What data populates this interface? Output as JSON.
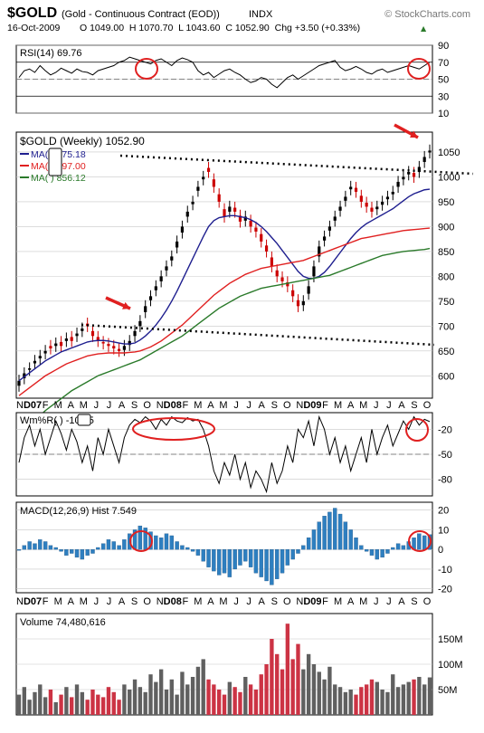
{
  "header": {
    "symbol": "$GOLD",
    "name": "(Gold - Continuous Contract (EOD))",
    "exchange": "INDX",
    "brand": "© StockCharts.com",
    "date": "16-Oct-2009",
    "ohlc": "O 1049.00  H 1070.70  L 1043.60  C 1052.90  Chg +3.50 (+0.33%)",
    "chg_arrow": "▲"
  },
  "colors": {
    "up": "#000000",
    "down": "#cc0000",
    "ma_short": "#1f1f8f",
    "ma_mid": "#e02020",
    "ma_long": "#2a7a2a",
    "hist": "#2e7fc0",
    "volume_up": "#606060",
    "volume_down": "#cc3344",
    "overbought_fill": "#7a9a7a",
    "annotation": "#e02020",
    "grid": "#c8c8c8"
  },
  "chart_data": [
    {
      "type": "line",
      "panel": "rsi",
      "label": "RSI(14) 69.76",
      "ylim": [
        10,
        90
      ],
      "tick_labels": [
        "90",
        "70",
        "50",
        "30",
        "10"
      ],
      "ticks": [
        90,
        70,
        50,
        30,
        10
      ],
      "reference_lines": [
        70,
        50,
        30
      ],
      "series": [
        {
          "values": [
            52,
            60,
            62,
            58,
            66,
            60,
            55,
            58,
            63,
            60,
            57,
            62,
            59,
            58,
            55,
            60,
            62,
            64,
            66,
            70,
            72,
            76,
            74,
            72,
            70,
            68,
            72,
            74,
            70,
            66,
            72,
            75,
            73,
            70,
            60,
            55,
            58,
            52,
            56,
            60,
            62,
            58,
            55,
            50,
            46,
            48,
            52,
            50,
            44,
            40,
            46,
            52,
            55,
            50,
            54,
            58,
            62,
            66,
            68,
            70,
            72,
            64,
            60,
            62,
            65,
            62,
            58,
            56,
            60,
            62,
            58,
            60,
            62,
            64,
            66,
            64,
            62,
            66,
            70
          ]
        }
      ]
    },
    {
      "type": "candlestick",
      "panel": "price",
      "label": "$GOLD (Weekly) 1052.90",
      "ylim": [
        555,
        1090
      ],
      "tick_labels": [
        "1050",
        "1000",
        "950",
        "900",
        "850",
        "800",
        "750",
        "700",
        "650",
        "600"
      ],
      "ticks": [
        1050,
        1000,
        950,
        900,
        850,
        800,
        750,
        700,
        650,
        600
      ],
      "x_labels": [
        "N",
        "D07",
        "F",
        "M",
        "A",
        "M",
        "J",
        "J",
        "A",
        "S",
        "O",
        "N",
        "D08",
        "F",
        "M",
        "A",
        "M",
        "J",
        "J",
        "A",
        "S",
        "O",
        "N",
        "D09",
        "F",
        "M",
        "A",
        "M",
        "J",
        "J",
        "A",
        "S",
        "O"
      ],
      "close": [
        590,
        605,
        615,
        630,
        640,
        650,
        655,
        665,
        660,
        675,
        670,
        685,
        695,
        700,
        680,
        670,
        665,
        660,
        655,
        650,
        660,
        670,
        690,
        710,
        740,
        760,
        780,
        800,
        820,
        840,
        870,
        900,
        930,
        950,
        980,
        1000,
        1010,
        980,
        950,
        920,
        940,
        930,
        910,
        920,
        900,
        890,
        870,
        850,
        820,
        800,
        790,
        780,
        760,
        740,
        750,
        780,
        820,
        860,
        880,
        900,
        920,
        940,
        960,
        980,
        970,
        950,
        940,
        930,
        940,
        950,
        960,
        970,
        990,
        1000,
        1010,
        1000,
        1020,
        1040,
        1052.9
      ],
      "open": [
        580,
        595,
        612,
        625,
        635,
        645,
        660,
        660,
        668,
        670,
        678,
        680,
        690,
        705,
        690,
        678,
        668,
        664,
        660,
        654,
        652,
        662,
        680,
        700,
        728,
        752,
        772,
        790,
        812,
        832,
        858,
        888,
        920,
        945,
        972,
        995,
        1018,
        995,
        965,
        935,
        930,
        938,
        922,
        912,
        912,
        898,
        885,
        862,
        838,
        812,
        798,
        788,
        772,
        752,
        742,
        765,
        800,
        840,
        872,
        892,
        912,
        932,
        952,
        975,
        978,
        962,
        948,
        938,
        935,
        944,
        955,
        965,
        980,
        995,
        1005,
        1008,
        1010,
        1030,
        1049
      ],
      "overlays": [
        {
          "name": "MA(  ) 975.18",
          "values": [
            590,
            598,
            606,
            614,
            622,
            630,
            636,
            642,
            648,
            652,
            656,
            660,
            664,
            668,
            670,
            671,
            671,
            670,
            668,
            666,
            664,
            664,
            666,
            672,
            680,
            690,
            702,
            716,
            732,
            750,
            770,
            792,
            814,
            836,
            858,
            880,
            900,
            912,
            918,
            920,
            922,
            922,
            920,
            918,
            914,
            908,
            900,
            890,
            878,
            866,
            852,
            838,
            824,
            810,
            800,
            796,
            796,
            800,
            808,
            820,
            834,
            848,
            862,
            876,
            888,
            898,
            906,
            912,
            918,
            924,
            930,
            936,
            944,
            952,
            960,
            966,
            970,
            974,
            975.18
          ]
        },
        {
          "name": "MA(  ) 897.00",
          "values": [
            560,
            568,
            576,
            584,
            592,
            600,
            606,
            612,
            618,
            624,
            628,
            632,
            636,
            640,
            642,
            644,
            645,
            646,
            646,
            646,
            646,
            647,
            648,
            650,
            654,
            658,
            664,
            670,
            678,
            686,
            694,
            702,
            712,
            722,
            732,
            742,
            752,
            762,
            770,
            778,
            786,
            792,
            798,
            804,
            808,
            812,
            816,
            818,
            820,
            822,
            824,
            826,
            828,
            830,
            832,
            836,
            840,
            844,
            848,
            852,
            856,
            860,
            864,
            868,
            872,
            876,
            878,
            880,
            882,
            884,
            886,
            888,
            890,
            892,
            893,
            894,
            895,
            896,
            897
          ]
        },
        {
          "name": "MA(  ) 856.12",
          "values": [
            480,
            490,
            500,
            510,
            520,
            530,
            538,
            546,
            554,
            562,
            570,
            576,
            582,
            588,
            594,
            600,
            604,
            608,
            612,
            616,
            620,
            624,
            628,
            632,
            638,
            644,
            650,
            656,
            662,
            668,
            674,
            680,
            688,
            696,
            704,
            712,
            720,
            728,
            736,
            742,
            748,
            754,
            760,
            764,
            768,
            772,
            776,
            778,
            780,
            782,
            784,
            786,
            788,
            790,
            792,
            794,
            796,
            798,
            800,
            802,
            806,
            810,
            814,
            818,
            822,
            826,
            830,
            834,
            838,
            842,
            844,
            846,
            848,
            850,
            851,
            852,
            853,
            854,
            856.12
          ]
        }
      ]
    },
    {
      "type": "line",
      "panel": "williams",
      "label": "Wm%R(  ) -10.75",
      "ylim": [
        -100,
        0
      ],
      "tick_labels": [
        "-20",
        "-50",
        "-80"
      ],
      "ticks": [
        -20,
        -50,
        -80
      ],
      "reference_lines": [
        -20,
        -50,
        -80
      ],
      "series": [
        {
          "values": [
            -60,
            -30,
            -15,
            -40,
            -20,
            -50,
            -30,
            -10,
            -25,
            -45,
            -20,
            -35,
            -60,
            -40,
            -70,
            -30,
            -50,
            -20,
            -40,
            -60,
            -30,
            -15,
            -8,
            -12,
            -5,
            -10,
            -20,
            -8,
            -15,
            -5,
            -10,
            -12,
            -6,
            -10,
            -8,
            -20,
            -40,
            -70,
            -85,
            -60,
            -75,
            -50,
            -80,
            -60,
            -90,
            -70,
            -80,
            -95,
            -60,
            -85,
            -70,
            -40,
            -60,
            -20,
            -30,
            -10,
            -40,
            -5,
            -20,
            -50,
            -30,
            -60,
            -40,
            -70,
            -50,
            -30,
            -60,
            -20,
            -50,
            -30,
            -15,
            -40,
            -25,
            -10,
            -20,
            -5,
            -15,
            -8,
            -10.75
          ]
        }
      ]
    },
    {
      "type": "bar",
      "panel": "macd",
      "label": "MACD(12,26,9) Hist 7.549",
      "ylim": [
        -22,
        24
      ],
      "tick_labels": [
        "20",
        "10",
        "0",
        "-10",
        "-20"
      ],
      "ticks": [
        20,
        10,
        0,
        -10,
        -20
      ],
      "values": [
        0,
        2,
        4,
        3,
        5,
        4,
        2,
        1,
        -1,
        -3,
        -2,
        -4,
        -5,
        -3,
        -2,
        1,
        3,
        5,
        4,
        2,
        5,
        8,
        10,
        12,
        11,
        9,
        7,
        6,
        8,
        7,
        4,
        2,
        1,
        -1,
        -3,
        -6,
        -9,
        -11,
        -13,
        -12,
        -14,
        -10,
        -8,
        -6,
        -9,
        -12,
        -14,
        -16,
        -18,
        -15,
        -12,
        -8,
        -5,
        -2,
        2,
        6,
        10,
        14,
        17,
        19,
        21,
        18,
        14,
        10,
        6,
        2,
        -1,
        -3,
        -5,
        -4,
        -2,
        1,
        3,
        2,
        4,
        6,
        8,
        7,
        7.549
      ]
    },
    {
      "type": "bar",
      "panel": "volume",
      "label": "Volume 74,480,616",
      "ylim": [
        0,
        200
      ],
      "tick_labels": [
        "150M",
        "100M",
        "50M"
      ],
      "ticks": [
        150,
        100,
        50
      ],
      "values": [
        40,
        55,
        30,
        45,
        60,
        35,
        50,
        25,
        40,
        55,
        35,
        60,
        45,
        30,
        50,
        40,
        35,
        55,
        45,
        30,
        60,
        50,
        70,
        55,
        45,
        80,
        65,
        90,
        50,
        70,
        40,
        85,
        60,
        75,
        95,
        110,
        70,
        60,
        50,
        40,
        65,
        55,
        45,
        75,
        60,
        50,
        80,
        100,
        150,
        120,
        90,
        180,
        110,
        140,
        90,
        120,
        100,
        85,
        70,
        95,
        60,
        55,
        45,
        50,
        40,
        55,
        60,
        70,
        65,
        50,
        45,
        80,
        55,
        60,
        65,
        70,
        75,
        60,
        74
      ]
    }
  ]
}
